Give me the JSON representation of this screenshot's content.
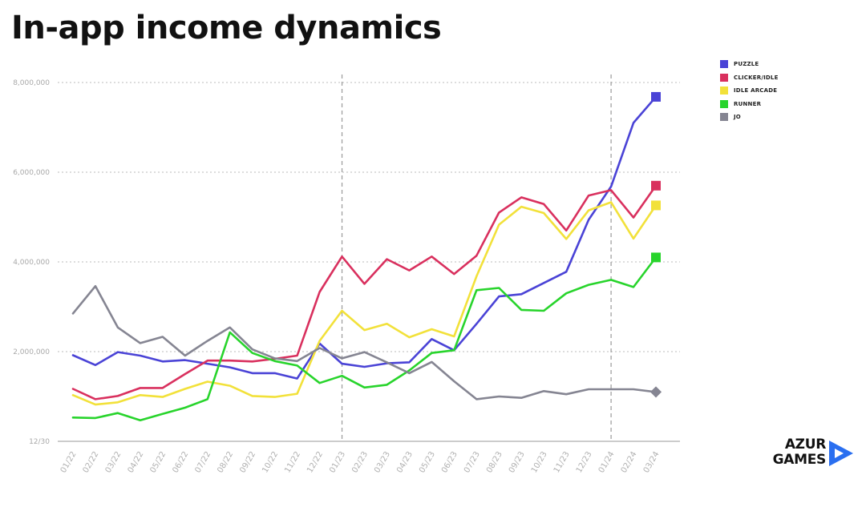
{
  "title": "In-app income dynamics",
  "logo": {
    "line1": "AZUR",
    "line2": "GAMES"
  },
  "chart_data": {
    "type": "line",
    "categories": [
      "01/22",
      "02/22",
      "03/22",
      "04/22",
      "05/22",
      "06/22",
      "07/22",
      "08/22",
      "09/22",
      "10/22",
      "11/22",
      "12/22",
      "01/23",
      "02/23",
      "03/23",
      "04/23",
      "05/23",
      "06/23",
      "07/23",
      "08/23",
      "09/23",
      "10/23",
      "11/23",
      "12/23",
      "01/24",
      "02/24",
      "03/24"
    ],
    "ylim": [
      0,
      8000000
    ],
    "y_ticks": [
      {
        "value": 0,
        "label": "12/30"
      },
      {
        "value": 2000000,
        "label": "2,000,000"
      },
      {
        "value": 4000000,
        "label": "4,000,000"
      },
      {
        "value": 6000000,
        "label": "6,000,000"
      },
      {
        "value": 8000000,
        "label": "8,000,000"
      }
    ],
    "grid": true,
    "vertical_markers": [
      "01/23",
      "01/24"
    ],
    "legend_position": "top-right",
    "series": [
      {
        "name": "PUZZLE",
        "color": "#4a43d6",
        "end_marker": "square",
        "values": [
          1920000,
          1700000,
          1990000,
          1910000,
          1780000,
          1810000,
          1730000,
          1650000,
          1520000,
          1520000,
          1400000,
          2180000,
          1730000,
          1660000,
          1740000,
          1760000,
          2280000,
          2030000,
          2620000,
          3230000,
          3280000,
          3530000,
          3780000,
          4940000,
          5680000,
          7100000,
          7680000
        ]
      },
      {
        "name": "CLICKER/IDLE",
        "color": "#d9305e",
        "end_marker": "square",
        "values": [
          1170000,
          940000,
          1010000,
          1190000,
          1190000,
          1500000,
          1800000,
          1800000,
          1780000,
          1840000,
          1910000,
          3330000,
          4120000,
          3510000,
          4060000,
          3810000,
          4120000,
          3730000,
          4140000,
          5100000,
          5440000,
          5290000,
          4700000,
          5480000,
          5600000,
          4990000,
          5700000
        ]
      },
      {
        "name": "IDLE ARCADE",
        "color": "#f2e13a",
        "end_marker": "square",
        "values": [
          1030000,
          820000,
          870000,
          1030000,
          990000,
          1170000,
          1330000,
          1240000,
          1010000,
          990000,
          1060000,
          2240000,
          2910000,
          2480000,
          2620000,
          2320000,
          2500000,
          2340000,
          3680000,
          4830000,
          5230000,
          5090000,
          4510000,
          5150000,
          5330000,
          4520000,
          5260000
        ]
      },
      {
        "name": "RUNNER",
        "color": "#28d42c",
        "end_marker": "square",
        "values": [
          530000,
          520000,
          630000,
          470000,
          610000,
          750000,
          940000,
          2430000,
          1970000,
          1790000,
          1690000,
          1300000,
          1460000,
          1200000,
          1260000,
          1580000,
          1970000,
          2030000,
          3370000,
          3420000,
          2930000,
          2910000,
          3300000,
          3490000,
          3600000,
          3440000,
          4100000
        ]
      },
      {
        "name": "JO",
        "color": "#858592",
        "end_marker": "diamond",
        "values": [
          2850000,
          3460000,
          2540000,
          2190000,
          2330000,
          1910000,
          2240000,
          2540000,
          2050000,
          1850000,
          1790000,
          2080000,
          1850000,
          1990000,
          1760000,
          1520000,
          1770000,
          1340000,
          940000,
          1000000,
          970000,
          1120000,
          1050000,
          1160000,
          1160000,
          1160000,
          1100000
        ]
      }
    ]
  }
}
